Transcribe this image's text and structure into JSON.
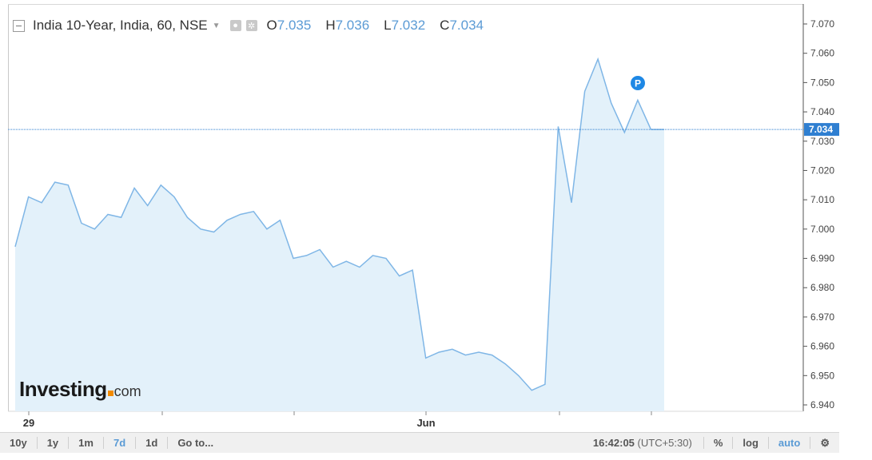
{
  "legend": {
    "title": "India 10-Year, India, 60, NSE",
    "open_label": "O",
    "open_value": "7.035",
    "high_label": "H",
    "high_value": "7.036",
    "low_label": "L",
    "low_value": "7.032",
    "close_label": "C",
    "close_value": "7.034",
    "settings_icon": "gear-icon",
    "visibility_icon": "eye-icon"
  },
  "logo": {
    "brand": "Investing",
    "suffix": "com"
  },
  "marker": {
    "label": "P"
  },
  "colors": {
    "line": "#7fb6e6",
    "fill": "#e3f1fa",
    "accent": "#2f7fd1",
    "brand_dot": "#f28b00"
  },
  "chart_data": {
    "type": "area",
    "title": "India 10-Year, India, 60, NSE",
    "ylim": [
      6.937,
      7.075
    ],
    "y_ticks": [
      "7.070",
      "7.060",
      "7.050",
      "7.040",
      "7.030",
      "7.020",
      "7.010",
      "7.000",
      "6.990",
      "6.980",
      "6.970",
      "6.960",
      "6.950",
      "6.940"
    ],
    "x_tick_labels": [
      "29",
      "Jun"
    ],
    "current_value": "7.034",
    "values": [
      6.994,
      7.011,
      7.009,
      7.016,
      7.015,
      7.002,
      7.0,
      7.005,
      7.004,
      7.014,
      7.008,
      7.015,
      7.011,
      7.004,
      7.0,
      6.999,
      7.003,
      7.005,
      7.006,
      7.0,
      7.003,
      6.99,
      6.991,
      6.993,
      6.987,
      6.989,
      6.987,
      6.991,
      6.99,
      6.984,
      6.986,
      6.956,
      6.958,
      6.959,
      6.957,
      6.958,
      6.957,
      6.954,
      6.95,
      6.945,
      6.947,
      7.035,
      7.009,
      7.047,
      7.058,
      7.043,
      7.033,
      7.044,
      7.034,
      7.034
    ]
  },
  "toolbar": {
    "range_10y": "10y",
    "range_1y": "1y",
    "range_1m": "1m",
    "range_7d": "7d",
    "range_1d": "1d",
    "goto": "Go to...",
    "time": "16:42:05",
    "timezone": "(UTC+5:30)",
    "percent": "%",
    "log": "log",
    "auto": "auto"
  }
}
